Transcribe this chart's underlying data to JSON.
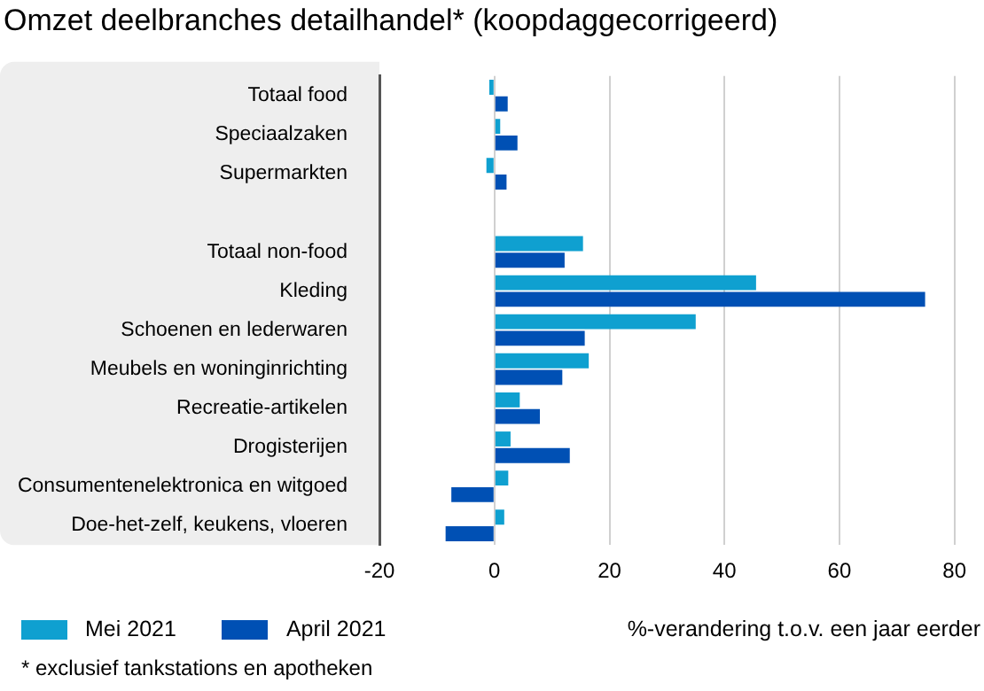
{
  "chart_data": {
    "type": "bar",
    "orientation": "horizontal",
    "title": "Omzet deelbranches detailhandel* (koopdaggecorrigeerd)",
    "xlabel": "%-verandering t.o.v. een jaar eerder",
    "categories": [
      "Totaal food",
      "Speciaalzaken",
      "Supermarkten",
      null,
      "Totaal non-food",
      "Kleding",
      "Schoenen en lederwaren",
      "Meubels en woninginrichting",
      "Recreatie-artikelen",
      "Drogisterijen",
      "Consumentenelektronica en witgoed",
      "Doe-het-zelf, keukens, vloeren"
    ],
    "series": [
      {
        "name": "Mei 2021",
        "color": "#0fa0d0",
        "values": [
          -0.9,
          1.0,
          -1.4,
          null,
          15.4,
          45.5,
          35.0,
          16.4,
          4.4,
          2.8,
          2.4,
          1.7
        ]
      },
      {
        "name": "April 2021",
        "color": "#0050b4",
        "values": [
          2.3,
          4.0,
          2.1,
          null,
          12.2,
          74.9,
          15.7,
          11.8,
          7.9,
          13.1,
          -7.5,
          -8.5
        ]
      }
    ],
    "xlim": [
      -20,
      80
    ],
    "xticks": [
      -20,
      0,
      20,
      40,
      60,
      80
    ],
    "grid": "x",
    "legend": "bottom left",
    "annotations": [
      "* exclusief tankstations en apotheken"
    ]
  }
}
